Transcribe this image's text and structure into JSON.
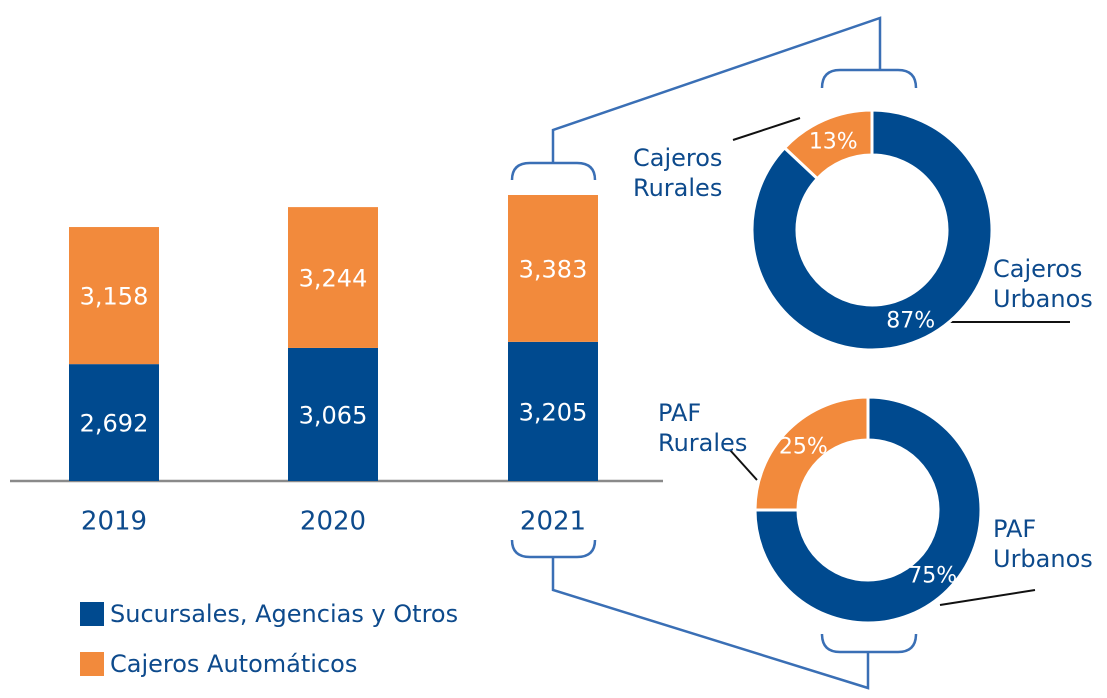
{
  "chart_data": [
    {
      "type": "stacked_bar",
      "categories": [
        "2019",
        "2020",
        "2021"
      ],
      "series": [
        {
          "name": "Sucursales, Agencias y Otros",
          "color": "#004a8f",
          "values": [
            2692,
            3065,
            3205
          ],
          "value_labels": [
            "2,692",
            "3,065",
            "3,205"
          ]
        },
        {
          "name": "Cajeros Automáticos",
          "color": "#f28a3c",
          "values": [
            3158,
            3244,
            3383
          ],
          "value_labels": [
            "3,158",
            "3,244",
            "3,383"
          ]
        }
      ]
    },
    {
      "type": "donut",
      "labels": [
        "Cajeros Rurales",
        "Cajeros Urbanos"
      ],
      "values": [
        13,
        87
      ],
      "value_labels": [
        "13%",
        "87%"
      ],
      "colors": [
        "#f28a3c",
        "#004a8f"
      ]
    },
    {
      "type": "donut",
      "labels": [
        "PAF Rurales",
        "PAF Urbanos"
      ],
      "values": [
        25,
        75
      ],
      "value_labels": [
        "25%",
        "75%"
      ],
      "colors": [
        "#f28a3c",
        "#004a8f"
      ]
    }
  ]
}
